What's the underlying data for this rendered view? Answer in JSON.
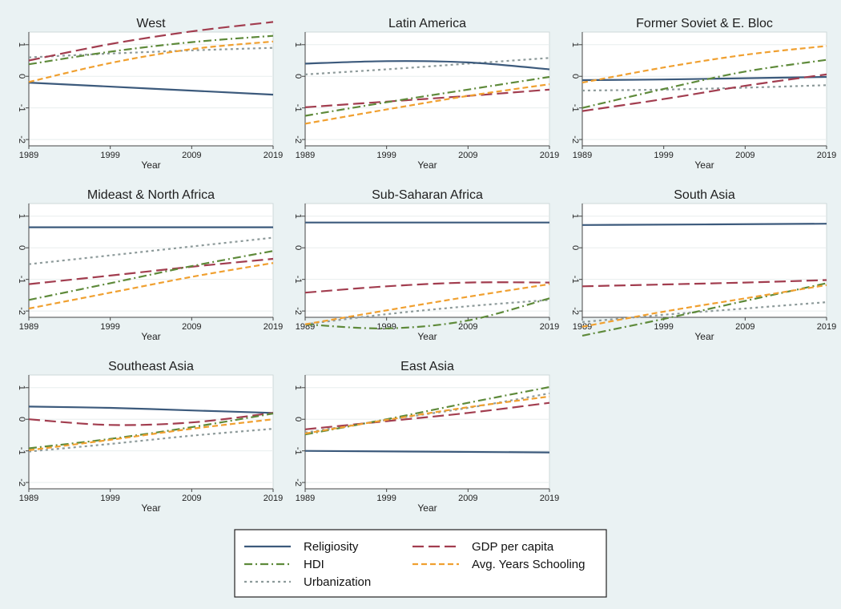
{
  "chart_data": {
    "type": "line",
    "layout": "small-multiples 3x3",
    "x_ticks": [
      1989,
      1999,
      2009,
      2019
    ],
    "y_ticks": [
      -2,
      -1,
      0,
      1
    ],
    "x_tick_labels": [
      "1989",
      "1999",
      "2009",
      "2019"
    ],
    "y_tick_labels": [
      "-2",
      "-1",
      "0",
      "1"
    ],
    "xlabel": "Year",
    "xlim": [
      1989,
      2019
    ],
    "ylim": [
      -2.2,
      1.4
    ],
    "legend": {
      "placement": "bottom-center",
      "entries": [
        {
          "key": "religiosity",
          "label": "Religiosity",
          "color": "#3c5a7c",
          "style": "solid"
        },
        {
          "key": "gdp",
          "label": "GDP per capita",
          "color": "#a23d4f",
          "style": "longdash"
        },
        {
          "key": "hdi",
          "label": "HDI",
          "color": "#5e8a3a",
          "style": "dashdot"
        },
        {
          "key": "schooling",
          "label": "Avg. Years Schooling",
          "color": "#f0a030",
          "style": "dash"
        },
        {
          "key": "urbanization",
          "label": "Urbanization",
          "color": "#8d9a9a",
          "style": "shortdash"
        }
      ]
    },
    "panels": [
      {
        "title": "West",
        "series": {
          "religiosity": [
            [
              1989,
              -0.2
            ],
            [
              2019,
              -0.58
            ]
          ],
          "gdp": [
            [
              1989,
              0.5
            ],
            [
              1999,
              1.02
            ],
            [
              2009,
              1.42
            ],
            [
              2019,
              1.72
            ]
          ],
          "hdi": [
            [
              1989,
              0.38
            ],
            [
              1999,
              0.78
            ],
            [
              2009,
              1.08
            ],
            [
              2019,
              1.28
            ]
          ],
          "schooling": [
            [
              1989,
              -0.18
            ],
            [
              1999,
              0.42
            ],
            [
              2009,
              0.86
            ],
            [
              2019,
              1.1
            ]
          ],
          "urbanization": [
            [
              1989,
              0.6
            ],
            [
              1999,
              0.72
            ],
            [
              2009,
              0.82
            ],
            [
              2019,
              0.9
            ]
          ]
        }
      },
      {
        "title": "Latin America",
        "series": {
          "religiosity": [
            [
              1989,
              0.4
            ],
            [
              1999,
              0.48
            ],
            [
              2009,
              0.44
            ],
            [
              2019,
              0.22
            ]
          ],
          "gdp": [
            [
              1989,
              -0.98
            ],
            [
              1999,
              -0.8
            ],
            [
              2009,
              -0.62
            ],
            [
              2019,
              -0.42
            ]
          ],
          "hdi": [
            [
              1989,
              -1.25
            ],
            [
              1999,
              -0.82
            ],
            [
              2009,
              -0.42
            ],
            [
              2019,
              -0.02
            ]
          ],
          "schooling": [
            [
              1989,
              -1.5
            ],
            [
              1999,
              -1.05
            ],
            [
              2009,
              -0.62
            ],
            [
              2019,
              -0.25
            ]
          ],
          "urbanization": [
            [
              1989,
              0.06
            ],
            [
              1999,
              0.22
            ],
            [
              2009,
              0.4
            ],
            [
              2019,
              0.58
            ]
          ]
        }
      },
      {
        "title": "Former Soviet & E. Bloc",
        "series": {
          "religiosity": [
            [
              1989,
              -0.12
            ],
            [
              1999,
              -0.1
            ],
            [
              2009,
              -0.06
            ],
            [
              2019,
              -0.02
            ]
          ],
          "gdp": [
            [
              1989,
              -1.1
            ],
            [
              1999,
              -0.72
            ],
            [
              2009,
              -0.3
            ],
            [
              2019,
              0.06
            ]
          ],
          "hdi": [
            [
              1989,
              -1.0
            ],
            [
              1999,
              -0.4
            ],
            [
              2009,
              0.15
            ],
            [
              2019,
              0.52
            ]
          ],
          "schooling": [
            [
              1989,
              -0.2
            ],
            [
              1999,
              0.28
            ],
            [
              2009,
              0.68
            ],
            [
              2019,
              0.96
            ]
          ],
          "urbanization": [
            [
              1989,
              -0.45
            ],
            [
              1999,
              -0.42
            ],
            [
              2009,
              -0.36
            ],
            [
              2019,
              -0.28
            ]
          ]
        }
      },
      {
        "title": "Mideast & North Africa",
        "series": {
          "religiosity": [
            [
              1989,
              0.65
            ],
            [
              2019,
              0.65
            ]
          ],
          "gdp": [
            [
              1989,
              -1.15
            ],
            [
              1999,
              -0.88
            ],
            [
              2009,
              -0.6
            ],
            [
              2019,
              -0.35
            ]
          ],
          "hdi": [
            [
              1989,
              -1.65
            ],
            [
              1999,
              -1.12
            ],
            [
              2009,
              -0.58
            ],
            [
              2019,
              -0.1
            ]
          ],
          "schooling": [
            [
              1989,
              -1.92
            ],
            [
              1999,
              -1.42
            ],
            [
              2009,
              -0.92
            ],
            [
              2019,
              -0.48
            ]
          ],
          "urbanization": [
            [
              1989,
              -0.52
            ],
            [
              1999,
              -0.24
            ],
            [
              2009,
              0.04
            ],
            [
              2019,
              0.32
            ]
          ]
        }
      },
      {
        "title": "Sub-Saharan Africa",
        "series": {
          "religiosity": [
            [
              1989,
              0.8
            ],
            [
              2019,
              0.8
            ]
          ],
          "gdp": [
            [
              1989,
              -1.42
            ],
            [
              1999,
              -1.22
            ],
            [
              2009,
              -1.1
            ],
            [
              2019,
              -1.1
            ]
          ],
          "hdi": [
            [
              1989,
              -2.42
            ],
            [
              1999,
              -2.55
            ],
            [
              2009,
              -2.3
            ],
            [
              2019,
              -1.6
            ]
          ],
          "schooling": [
            [
              1989,
              -2.42
            ],
            [
              1999,
              -1.98
            ],
            [
              2009,
              -1.55
            ],
            [
              2019,
              -1.15
            ]
          ],
          "urbanization": [
            [
              1989,
              -2.42
            ],
            [
              1999,
              -2.1
            ],
            [
              2009,
              -1.85
            ],
            [
              2019,
              -1.65
            ]
          ]
        }
      },
      {
        "title": "South Asia",
        "series": {
          "religiosity": [
            [
              1989,
              0.72
            ],
            [
              2019,
              0.76
            ]
          ],
          "gdp": [
            [
              1989,
              -1.22
            ],
            [
              1999,
              -1.16
            ],
            [
              2009,
              -1.1
            ],
            [
              2019,
              -1.02
            ]
          ],
          "hdi": [
            [
              1989,
              -2.78
            ],
            [
              1999,
              -2.25
            ],
            [
              2009,
              -1.68
            ],
            [
              2019,
              -1.12
            ]
          ],
          "schooling": [
            [
              1989,
              -2.5
            ],
            [
              1999,
              -2.02
            ],
            [
              2009,
              -1.6
            ],
            [
              2019,
              -1.18
            ]
          ],
          "urbanization": [
            [
              1989,
              -2.35
            ],
            [
              1999,
              -2.12
            ],
            [
              2009,
              -1.92
            ],
            [
              2019,
              -1.72
            ]
          ]
        }
      },
      {
        "title": "Southeast Asia",
        "series": {
          "religiosity": [
            [
              1989,
              0.4
            ],
            [
              1999,
              0.36
            ],
            [
              2009,
              0.28
            ],
            [
              2019,
              0.2
            ]
          ],
          "gdp": [
            [
              1989,
              0.0
            ],
            [
              1999,
              -0.18
            ],
            [
              2009,
              -0.1
            ],
            [
              2019,
              0.2
            ]
          ],
          "hdi": [
            [
              1989,
              -0.92
            ],
            [
              1999,
              -0.62
            ],
            [
              2009,
              -0.25
            ],
            [
              2019,
              0.18
            ]
          ],
          "schooling": [
            [
              1989,
              -0.98
            ],
            [
              1999,
              -0.65
            ],
            [
              2009,
              -0.3
            ],
            [
              2019,
              0.0
            ]
          ],
          "urbanization": [
            [
              1989,
              -1.02
            ],
            [
              1999,
              -0.78
            ],
            [
              2009,
              -0.52
            ],
            [
              2019,
              -0.3
            ]
          ]
        }
      },
      {
        "title": "East Asia",
        "series": {
          "religiosity": [
            [
              1989,
              -1.0
            ],
            [
              2019,
              -1.05
            ]
          ],
          "gdp": [
            [
              1989,
              -0.32
            ],
            [
              1999,
              -0.06
            ],
            [
              2009,
              0.2
            ],
            [
              2019,
              0.52
            ]
          ],
          "hdi": [
            [
              1989,
              -0.48
            ],
            [
              1999,
              0.0
            ],
            [
              2009,
              0.52
            ],
            [
              2019,
              1.02
            ]
          ],
          "schooling": [
            [
              1989,
              -0.45
            ],
            [
              1999,
              -0.02
            ],
            [
              2009,
              0.38
            ],
            [
              2019,
              0.72
            ]
          ],
          "urbanization": [
            [
              1989,
              -0.42
            ],
            [
              1999,
              -0.02
            ],
            [
              2009,
              0.36
            ],
            [
              2019,
              0.82
            ]
          ]
        }
      }
    ]
  }
}
